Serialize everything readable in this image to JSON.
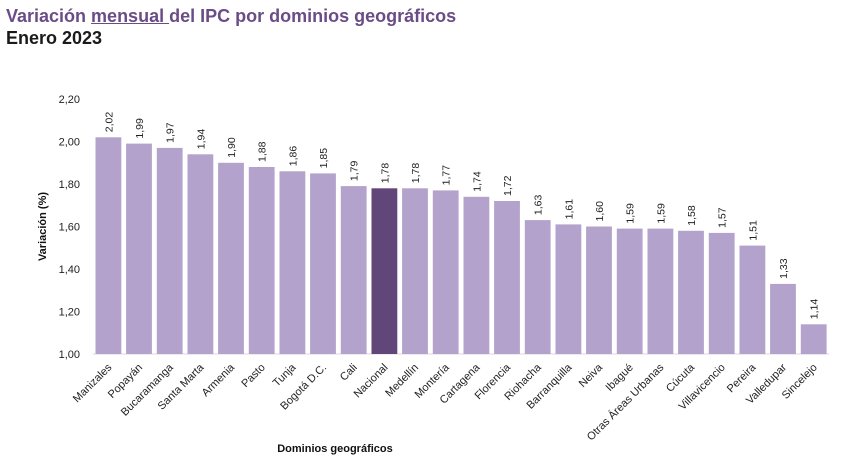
{
  "chart_data": {
    "type": "bar",
    "title_part1": "Variación ",
    "title_part2": "mensual ",
    "title_part3": "del IPC por dominios geográficos",
    "subtitle": "Enero 2023",
    "xlabel": "Dominios geográficos",
    "ylabel": "Variación (%)",
    "ylim": [
      1.0,
      2.2
    ],
    "yticks": [
      "1,00",
      "1,20",
      "1,40",
      "1,60",
      "1,80",
      "2,00",
      "2,20"
    ],
    "yticks_values": [
      1.0,
      1.2,
      1.4,
      1.6,
      1.8,
      2.0,
      2.2
    ],
    "grid": false,
    "categories": [
      "Manizales",
      "Popayán",
      "Bucaramanga",
      "Santa Marta",
      "Armenia",
      "Pasto",
      "Tunja",
      "Bogotá D.C.",
      "Cali",
      "Nacional",
      "Medellín",
      "Montería",
      "Cartagena",
      "Florencia",
      "Riohacha",
      "Barranquilla",
      "Neiva",
      "Ibagué",
      "Otras Áreas Urbanas",
      "Cúcuta",
      "Villavicencio",
      "Pereira",
      "Valledupar",
      "Sincelejo"
    ],
    "values": [
      2.02,
      1.99,
      1.97,
      1.94,
      1.9,
      1.88,
      1.86,
      1.85,
      1.79,
      1.78,
      1.78,
      1.77,
      1.74,
      1.72,
      1.63,
      1.61,
      1.6,
      1.59,
      1.59,
      1.58,
      1.57,
      1.51,
      1.33,
      1.14
    ],
    "value_labels": [
      "2,02",
      "1,99",
      "1,97",
      "1,94",
      "1,90",
      "1,88",
      "1,86",
      "1,85",
      "1,79",
      "1,78",
      "1,78",
      "1,77",
      "1,74",
      "1,72",
      "1,63",
      "1,61",
      "1,60",
      "1,59",
      "1,59",
      "1,58",
      "1,57",
      "1,51",
      "1,33",
      "1,14"
    ],
    "highlight": "Nacional",
    "colors": {
      "bar": "#b3a2cb",
      "highlight": "#61467a",
      "title": "#6a4c86"
    }
  }
}
